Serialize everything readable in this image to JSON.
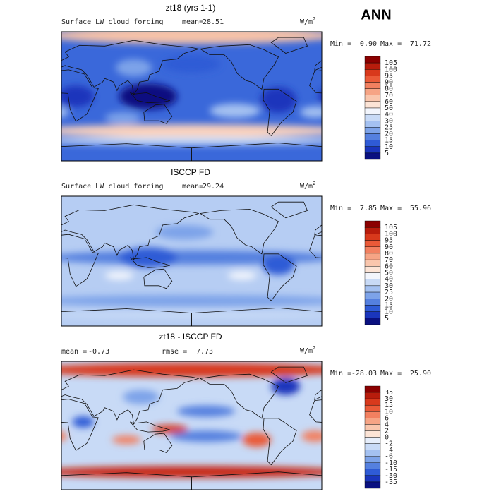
{
  "header": {
    "title": "ANN"
  },
  "panels": [
    {
      "title": "zt18 (yrs 1-1)",
      "label": "Surface LW cloud forcing",
      "mean_label": "mean=",
      "mean": "28.51",
      "units": "W/m",
      "units_sup": "2",
      "min_label": "Min =",
      "min": "0.90",
      "max_label": "Max =",
      "max": "71.72",
      "colorbar": {
        "levels": [
          105,
          100,
          95,
          90,
          80,
          70,
          60,
          50,
          40,
          30,
          25,
          20,
          15,
          10,
          5
        ],
        "colors": [
          "#8b0000",
          "#b81c0c",
          "#d8391c",
          "#ea5a38",
          "#f28060",
          "#f6a485",
          "#f9c6ad",
          "#fce4d6",
          "#f2f5fc",
          "#c8daf6",
          "#a4c1f1",
          "#7da3e9",
          "#5580df",
          "#2f5bd6",
          "#1a35bc",
          "#0a1080"
        ]
      }
    },
    {
      "title": "ISCCP FD",
      "label": "Surface LW cloud forcing",
      "mean_label": "mean=",
      "mean": "29.24",
      "units": "W/m",
      "units_sup": "2",
      "min_label": "Min =",
      "min": "7.85",
      "max_label": "Max =",
      "max": "55.96",
      "colorbar": {
        "levels": [
          105,
          100,
          95,
          90,
          80,
          70,
          60,
          50,
          40,
          30,
          25,
          20,
          15,
          10,
          5
        ],
        "colors": [
          "#8b0000",
          "#b81c0c",
          "#d8391c",
          "#ea5a38",
          "#f28060",
          "#f6a485",
          "#f9c6ad",
          "#fce4d6",
          "#f2f5fc",
          "#c8daf6",
          "#a4c1f1",
          "#7da3e9",
          "#5580df",
          "#2f5bd6",
          "#1a35bc",
          "#0a1080"
        ]
      }
    },
    {
      "title": "zt18 - ISCCP FD",
      "mean_label": "mean =",
      "mean": "-0.73",
      "rmse_label": "rmse =",
      "rmse": "7.73",
      "units": "W/m",
      "units_sup": "2",
      "min_label": "Min =",
      "min": "-28.03",
      "max_label": "Max =",
      "max": "25.90",
      "colorbar": {
        "levels": [
          35,
          30,
          15,
          10,
          6,
          4,
          2,
          0,
          -2,
          -4,
          -6,
          -10,
          -15,
          -30,
          -35
        ],
        "colors": [
          "#8b0000",
          "#b81c0c",
          "#d8391c",
          "#ea5a38",
          "#f28060",
          "#f6a485",
          "#f9c6ad",
          "#fce4d6",
          "#e6eefb",
          "#c8daf6",
          "#a4c1f1",
          "#7da3e9",
          "#5580df",
          "#2f5bd6",
          "#1a35bc",
          "#0a1080"
        ]
      }
    }
  ]
}
